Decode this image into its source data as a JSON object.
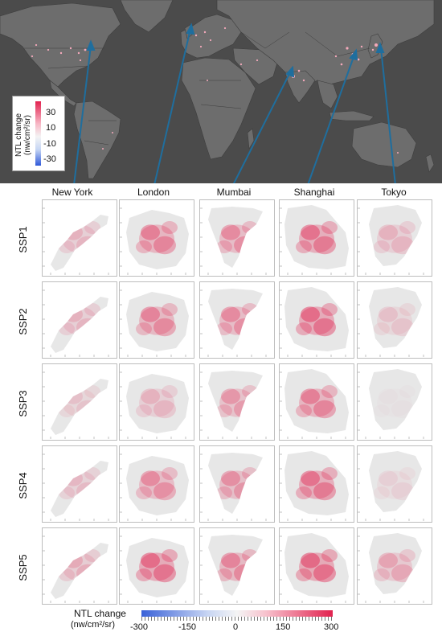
{
  "cities": [
    "New York",
    "London",
    "Mumbai",
    "Shanghai",
    "Tokyo"
  ],
  "scenarios": [
    "SSP1",
    "SSP2",
    "SSP3",
    "SSP4",
    "SSP5"
  ],
  "map_legend": {
    "title_line1": "NTL change",
    "title_line2": "(nw/cm²/sr)",
    "ticks": [
      "30",
      "10",
      "-10",
      "-30"
    ]
  },
  "panel_legend": {
    "title_line1": "NTL change",
    "title_line2": "(nw/cm²/sr)",
    "ticks": [
      "-300",
      "-150",
      "0",
      "150",
      "300"
    ],
    "range": [
      -300,
      300
    ]
  },
  "colors": {
    "ocean": "#4b4b4b",
    "land": "#6e6e6e",
    "arrow": "#1f6e9e",
    "high": "#e2224f",
    "low": "#2f59d9"
  }
}
